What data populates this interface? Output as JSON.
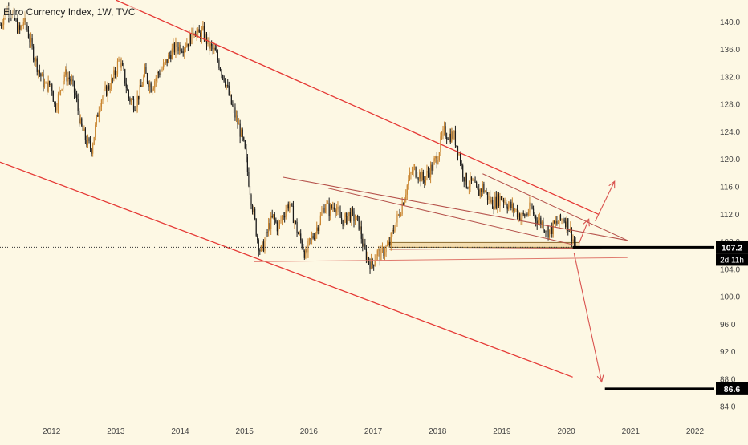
{
  "chart_data": {
    "type": "candlestick",
    "title": "Euro Currency Index, 1W, TVC",
    "x_ticks": [
      "2012",
      "2013",
      "2014",
      "2015",
      "2016",
      "2017",
      "2018",
      "2019",
      "2020",
      "2021",
      "2022"
    ],
    "x_range": [
      2011.2,
      2022.3
    ],
    "y_ticks": [
      "84.0",
      "88.0",
      "92.0",
      "96.0",
      "100.0",
      "104.0",
      "108.0",
      "112.0",
      "116.0",
      "120.0",
      "124.0",
      "128.0",
      "132.0",
      "136.0",
      "140.0"
    ],
    "y_range": [
      82.5,
      143.2
    ],
    "last_price": {
      "label": "107.2",
      "value": 107.2
    },
    "countdown_label": "2d 11h",
    "target_label": {
      "label": "86.6",
      "value": 86.6
    },
    "colors": {
      "background": "#fdf8e4",
      "up_candle": "#c9852f",
      "down_candle": "#1a1a1a",
      "channel": "#e53935",
      "wedge": "#b5514a",
      "arrow": "#d9534f",
      "zone_fill": "#f3d9a8",
      "level": "#000000"
    },
    "price_path": [
      [
        2011.2,
        139.5
      ],
      [
        2011.3,
        142.0
      ],
      [
        2011.4,
        141.0
      ],
      [
        2011.5,
        138.5
      ],
      [
        2011.58,
        140.5
      ],
      [
        2011.7,
        136.0
      ],
      [
        2011.8,
        133.0
      ],
      [
        2011.9,
        130.5
      ],
      [
        2012.0,
        131.0
      ],
      [
        2012.05,
        127.5
      ],
      [
        2012.12,
        129.5
      ],
      [
        2012.2,
        132.5
      ],
      [
        2012.3,
        131.5
      ],
      [
        2012.38,
        129.0
      ],
      [
        2012.45,
        125.0
      ],
      [
        2012.55,
        122.5
      ],
      [
        2012.62,
        121.5
      ],
      [
        2012.68,
        124.5
      ],
      [
        2012.75,
        128.5
      ],
      [
        2012.85,
        130.0
      ],
      [
        2012.95,
        131.5
      ],
      [
        2013.05,
        134.5
      ],
      [
        2013.12,
        132.5
      ],
      [
        2013.2,
        129.0
      ],
      [
        2013.3,
        128.0
      ],
      [
        2013.38,
        130.0
      ],
      [
        2013.45,
        132.5
      ],
      [
        2013.55,
        130.5
      ],
      [
        2013.65,
        132.5
      ],
      [
        2013.75,
        133.5
      ],
      [
        2013.85,
        135.5
      ],
      [
        2013.95,
        136.5
      ],
      [
        2014.05,
        136.5
      ],
      [
        2014.15,
        137.5
      ],
      [
        2014.22,
        139.0
      ],
      [
        2014.28,
        138.0
      ],
      [
        2014.35,
        138.5
      ],
      [
        2014.45,
        136.5
      ],
      [
        2014.55,
        135.5
      ],
      [
        2014.62,
        133.5
      ],
      [
        2014.7,
        131.5
      ],
      [
        2014.78,
        128.5
      ],
      [
        2014.85,
        126.5
      ],
      [
        2014.92,
        124.5
      ],
      [
        2015.0,
        121.5
      ],
      [
        2015.05,
        118.0
      ],
      [
        2015.1,
        114.5
      ],
      [
        2015.15,
        111.5
      ],
      [
        2015.2,
        108.5
      ],
      [
        2015.25,
        106.5
      ],
      [
        2015.32,
        108.0
      ],
      [
        2015.38,
        110.5
      ],
      [
        2015.45,
        111.5
      ],
      [
        2015.52,
        110.0
      ],
      [
        2015.6,
        112.0
      ],
      [
        2015.68,
        113.5
      ],
      [
        2015.75,
        112.0
      ],
      [
        2015.82,
        109.5
      ],
      [
        2015.9,
        107.5
      ],
      [
        2015.95,
        106.0
      ],
      [
        2016.02,
        108.0
      ],
      [
        2016.1,
        109.5
      ],
      [
        2016.18,
        111.5
      ],
      [
        2016.25,
        113.5
      ],
      [
        2016.32,
        112.5
      ],
      [
        2016.4,
        113.5
      ],
      [
        2016.48,
        111.5
      ],
      [
        2016.55,
        111.0
      ],
      [
        2016.62,
        112.0
      ],
      [
        2016.7,
        111.5
      ],
      [
        2016.78,
        110.5
      ],
      [
        2016.85,
        107.0
      ],
      [
        2016.92,
        105.5
      ],
      [
        2016.98,
        104.5
      ],
      [
        2017.05,
        106.5
      ],
      [
        2017.12,
        106.0
      ],
      [
        2017.18,
        107.0
      ],
      [
        2017.25,
        107.5
      ],
      [
        2017.32,
        110.0
      ],
      [
        2017.4,
        112.0
      ],
      [
        2017.48,
        114.5
      ],
      [
        2017.55,
        117.0
      ],
      [
        2017.62,
        118.5
      ],
      [
        2017.7,
        118.0
      ],
      [
        2017.78,
        117.0
      ],
      [
        2017.85,
        118.0
      ],
      [
        2017.92,
        119.0
      ],
      [
        2018.0,
        120.5
      ],
      [
        2018.05,
        122.5
      ],
      [
        2018.1,
        124.0
      ],
      [
        2018.18,
        123.5
      ],
      [
        2018.25,
        123.5
      ],
      [
        2018.32,
        121.5
      ],
      [
        2018.38,
        118.5
      ],
      [
        2018.45,
        116.5
      ],
      [
        2018.55,
        116.5
      ],
      [
        2018.62,
        115.0
      ],
      [
        2018.7,
        116.0
      ],
      [
        2018.78,
        114.5
      ],
      [
        2018.85,
        113.5
      ],
      [
        2018.92,
        114.0
      ],
      [
        2019.0,
        114.5
      ],
      [
        2019.08,
        113.5
      ],
      [
        2019.15,
        113.0
      ],
      [
        2019.22,
        112.5
      ],
      [
        2019.3,
        111.5
      ],
      [
        2019.38,
        112.0
      ],
      [
        2019.45,
        113.0
      ],
      [
        2019.52,
        111.5
      ],
      [
        2019.6,
        111.0
      ],
      [
        2019.68,
        110.0
      ],
      [
        2019.75,
        109.5
      ],
      [
        2019.82,
        110.5
      ],
      [
        2019.9,
        111.0
      ],
      [
        2019.95,
        111.5
      ],
      [
        2020.0,
        111.0
      ],
      [
        2020.05,
        110.0
      ],
      [
        2020.1,
        108.5
      ],
      [
        2020.15,
        107.2
      ]
    ],
    "drawings": {
      "channel_upper": [
        [
          2013.0,
          143.2
        ],
        [
          2020.5,
          112.0
        ]
      ],
      "channel_lower": [
        [
          2011.2,
          119.6
        ],
        [
          2020.1,
          88.3
        ]
      ],
      "wedge_upper": [
        [
          2015.6,
          117.4
        ],
        [
          2020.95,
          108.2
        ]
      ],
      "wedge_lower": [
        [
          2015.15,
          105.1
        ],
        [
          2020.95,
          105.7
        ]
      ],
      "wedge_top_line": [
        [
          2016.3,
          115.8
        ],
        [
          2020.1,
          107.6
        ]
      ],
      "wedge_late_upper": [
        [
          2018.7,
          117.9
        ],
        [
          2020.95,
          108.2
        ]
      ],
      "zone": [
        [
          2017.25,
          107.9
        ],
        [
          2020.2,
          107.2
        ]
      ],
      "zone_line": [
        [
          2017.25,
          106.9
        ],
        [
          2020.55,
          107.1
        ]
      ],
      "arrow_small_up": [
        [
          2020.2,
          107.8
        ],
        [
          2020.35,
          111.3
        ]
      ],
      "arrow_big_up": [
        [
          2020.45,
          111.0
        ],
        [
          2020.75,
          116.8
        ]
      ],
      "arrow_down": [
        [
          2020.12,
          106.4
        ],
        [
          2020.55,
          87.6
        ]
      ],
      "level_current": [
        [
          2020.1,
          107.2
        ],
        [
          2022.3,
          107.2
        ]
      ],
      "level_target": [
        [
          2020.6,
          86.6
        ],
        [
          2022.3,
          86.6
        ]
      ]
    }
  }
}
